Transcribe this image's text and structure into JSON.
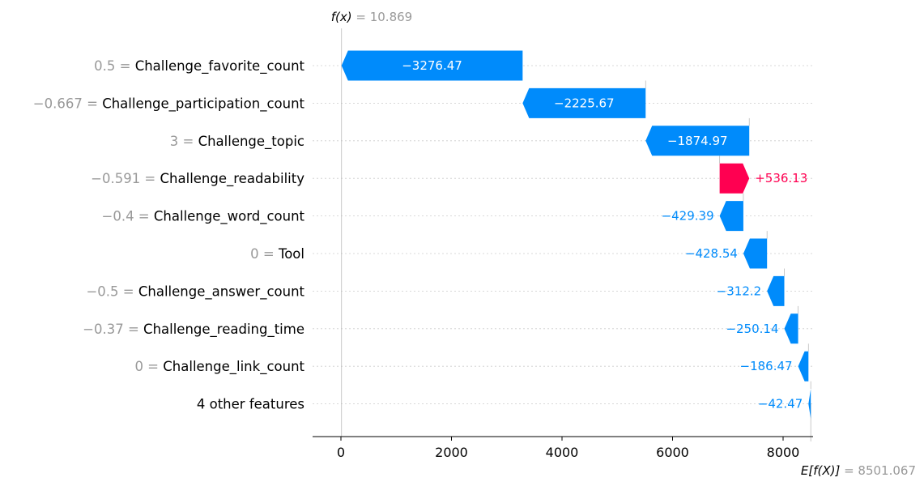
{
  "chart_data": {
    "type": "waterfall",
    "fx_label": "f(x)",
    "fx_value": "= 10.869",
    "base_label": "E[f(X)]",
    "base_value": "= 8501.067",
    "base": 8501.067,
    "final": 10.869,
    "xlim": [
      -500,
      8500
    ],
    "xticks": [
      0,
      2000,
      4000,
      6000,
      8000
    ],
    "xtick_labels": [
      "0",
      "2000",
      "4000",
      "6000",
      "8000"
    ],
    "colors": {
      "positive": "#ff0051",
      "negative": "#008bfb",
      "feature_value": "#999999",
      "feature_name": "#000000"
    },
    "rows": [
      {
        "value_label": "0.5 =",
        "name": "Challenge_favorite_count",
        "contribution": -3276.47,
        "text": "−3276.47"
      },
      {
        "value_label": "−0.667 =",
        "name": "Challenge_participation_count",
        "contribution": -2225.67,
        "text": "−2225.67"
      },
      {
        "value_label": "3 =",
        "name": "Challenge_topic",
        "contribution": -1874.97,
        "text": "−1874.97"
      },
      {
        "value_label": "−0.591 =",
        "name": "Challenge_readability",
        "contribution": 536.13,
        "text": "+536.13"
      },
      {
        "value_label": "−0.4 =",
        "name": "Challenge_word_count",
        "contribution": -429.39,
        "text": "−429.39"
      },
      {
        "value_label": "0 =",
        "name": "Tool",
        "contribution": -428.54,
        "text": "−428.54"
      },
      {
        "value_label": "−0.5 =",
        "name": "Challenge_answer_count",
        "contribution": -312.2,
        "text": "−312.2"
      },
      {
        "value_label": "−0.37 =",
        "name": "Challenge_reading_time",
        "contribution": -250.14,
        "text": "−250.14"
      },
      {
        "value_label": "0 =",
        "name": "Challenge_link_count",
        "contribution": -186.47,
        "text": "−186.47"
      },
      {
        "value_label": "",
        "name": "4 other features",
        "contribution": -42.47,
        "text": "−42.47"
      }
    ]
  }
}
